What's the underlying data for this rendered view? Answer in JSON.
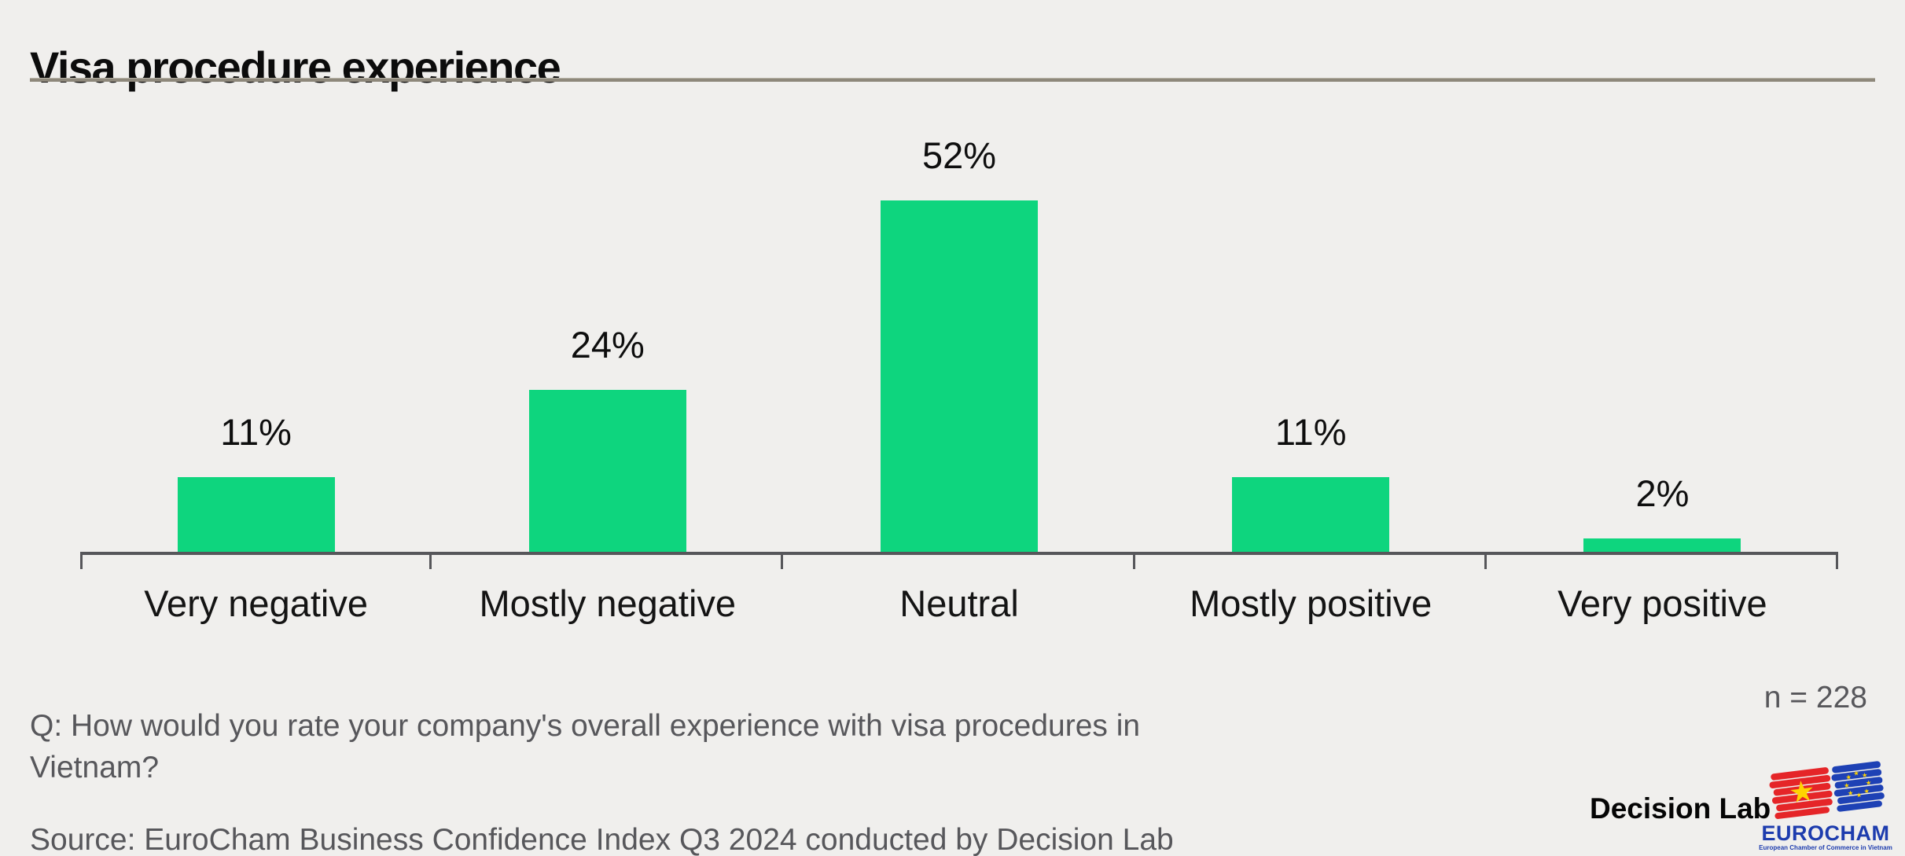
{
  "title": "Visa procedure experience",
  "colors": {
    "background": "#f0efed",
    "bar_green": "#0ed57e",
    "title_rule": "#8e887b",
    "axis": "#56565a",
    "muted_text": "#57575b",
    "eurocham_blue": "#1d3cae",
    "flag_red": "#e52528",
    "star_yellow": "#ffd400"
  },
  "chart_data": {
    "type": "bar",
    "title": "Visa procedure experience",
    "categories": [
      "Very negative",
      "Mostly negative",
      "Neutral",
      "Mostly positive",
      "Very positive"
    ],
    "values": [
      11,
      24,
      52,
      11,
      2
    ],
    "value_labels": [
      "11%",
      "24%",
      "52%",
      "11%",
      "2%"
    ],
    "xlabel": "",
    "ylabel": "",
    "ylim": [
      0,
      52
    ],
    "bar_color": "#0ed57e",
    "grid": false,
    "legend": false
  },
  "footnotes": {
    "question": "Q: How would you rate your company's overall experience with visa procedures in Vietnam?",
    "sample_size": "n = 228",
    "source": "Source: EuroCham Business Confidence Index Q3 2024 conducted by Decision Lab"
  },
  "branding": {
    "decision_lab": "Decision Lab",
    "eurocham_name": "EUROCHAM",
    "eurocham_tagline": "European Chamber of Commerce in Vietnam"
  }
}
